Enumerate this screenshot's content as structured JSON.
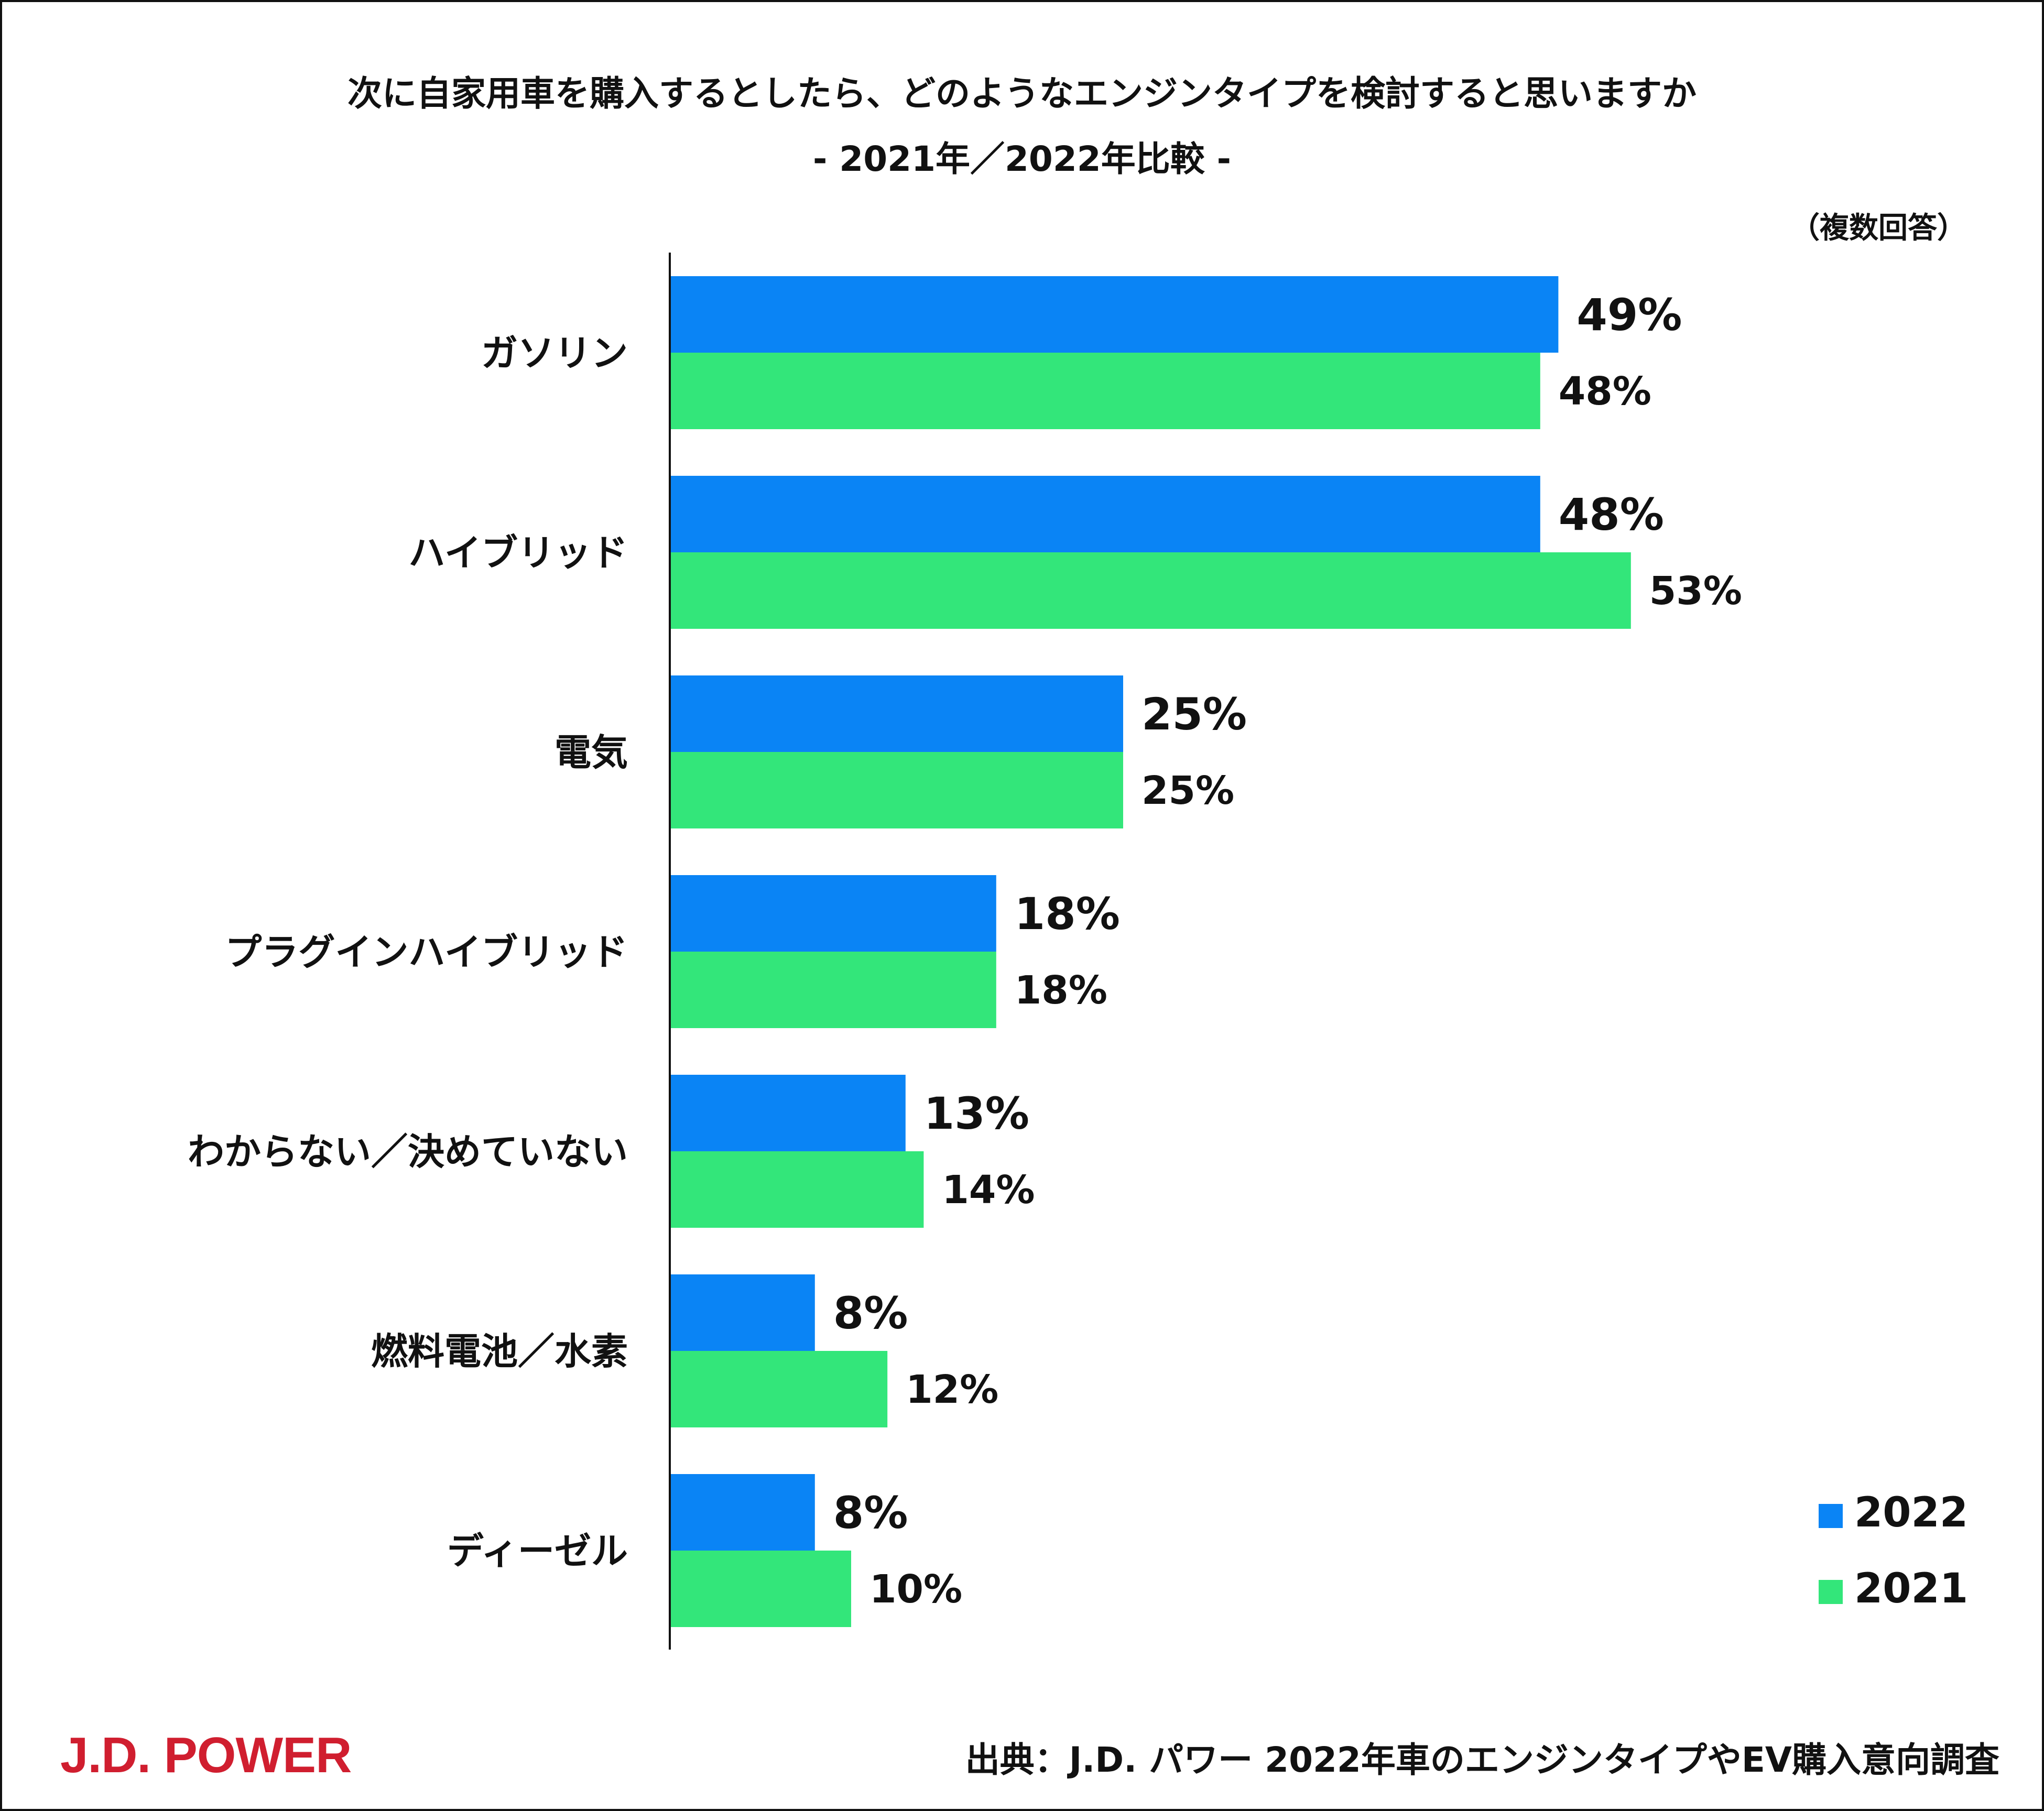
{
  "title_line1": "次に自家用車を購入するとしたら、どのようなエンジンタイプを検討すると思いますか",
  "title_line2": "-  2021年／2022年比較  -",
  "note": "（複数回答）",
  "source": "出典：J.D. パワー 2022年車のエンジンタイプやEV購入意向調査",
  "logo": "J.D. POWER",
  "colors": {
    "s2022": "#0a84f5",
    "s2021": "#33e67a",
    "axis": "#111111"
  },
  "chart_data": {
    "type": "bar",
    "orientation": "horizontal",
    "categories": [
      "ガソリン",
      "ハイブリッド",
      "電気",
      "プラグインハイブリッド",
      "わからない／決めていない",
      "燃料電池／水素",
      "ディーゼル"
    ],
    "series": [
      {
        "name": "2022",
        "values": [
          49,
          48,
          25,
          18,
          13,
          8,
          8
        ]
      },
      {
        "name": "2021",
        "values": [
          48,
          53,
          25,
          18,
          14,
          12,
          10
        ]
      }
    ],
    "value_labels": {
      "2022": [
        "49%",
        "48%",
        "25%",
        "18%",
        "13%",
        "8%",
        "8%"
      ],
      "2021": [
        "48%",
        "53%",
        "25%",
        "18%",
        "14%",
        "12%",
        "10%"
      ]
    },
    "legend": [
      "2022",
      "2021"
    ],
    "legend_position": "bottom-right",
    "xlim": [
      0,
      60
    ],
    "grid": false,
    "unit": "%"
  }
}
